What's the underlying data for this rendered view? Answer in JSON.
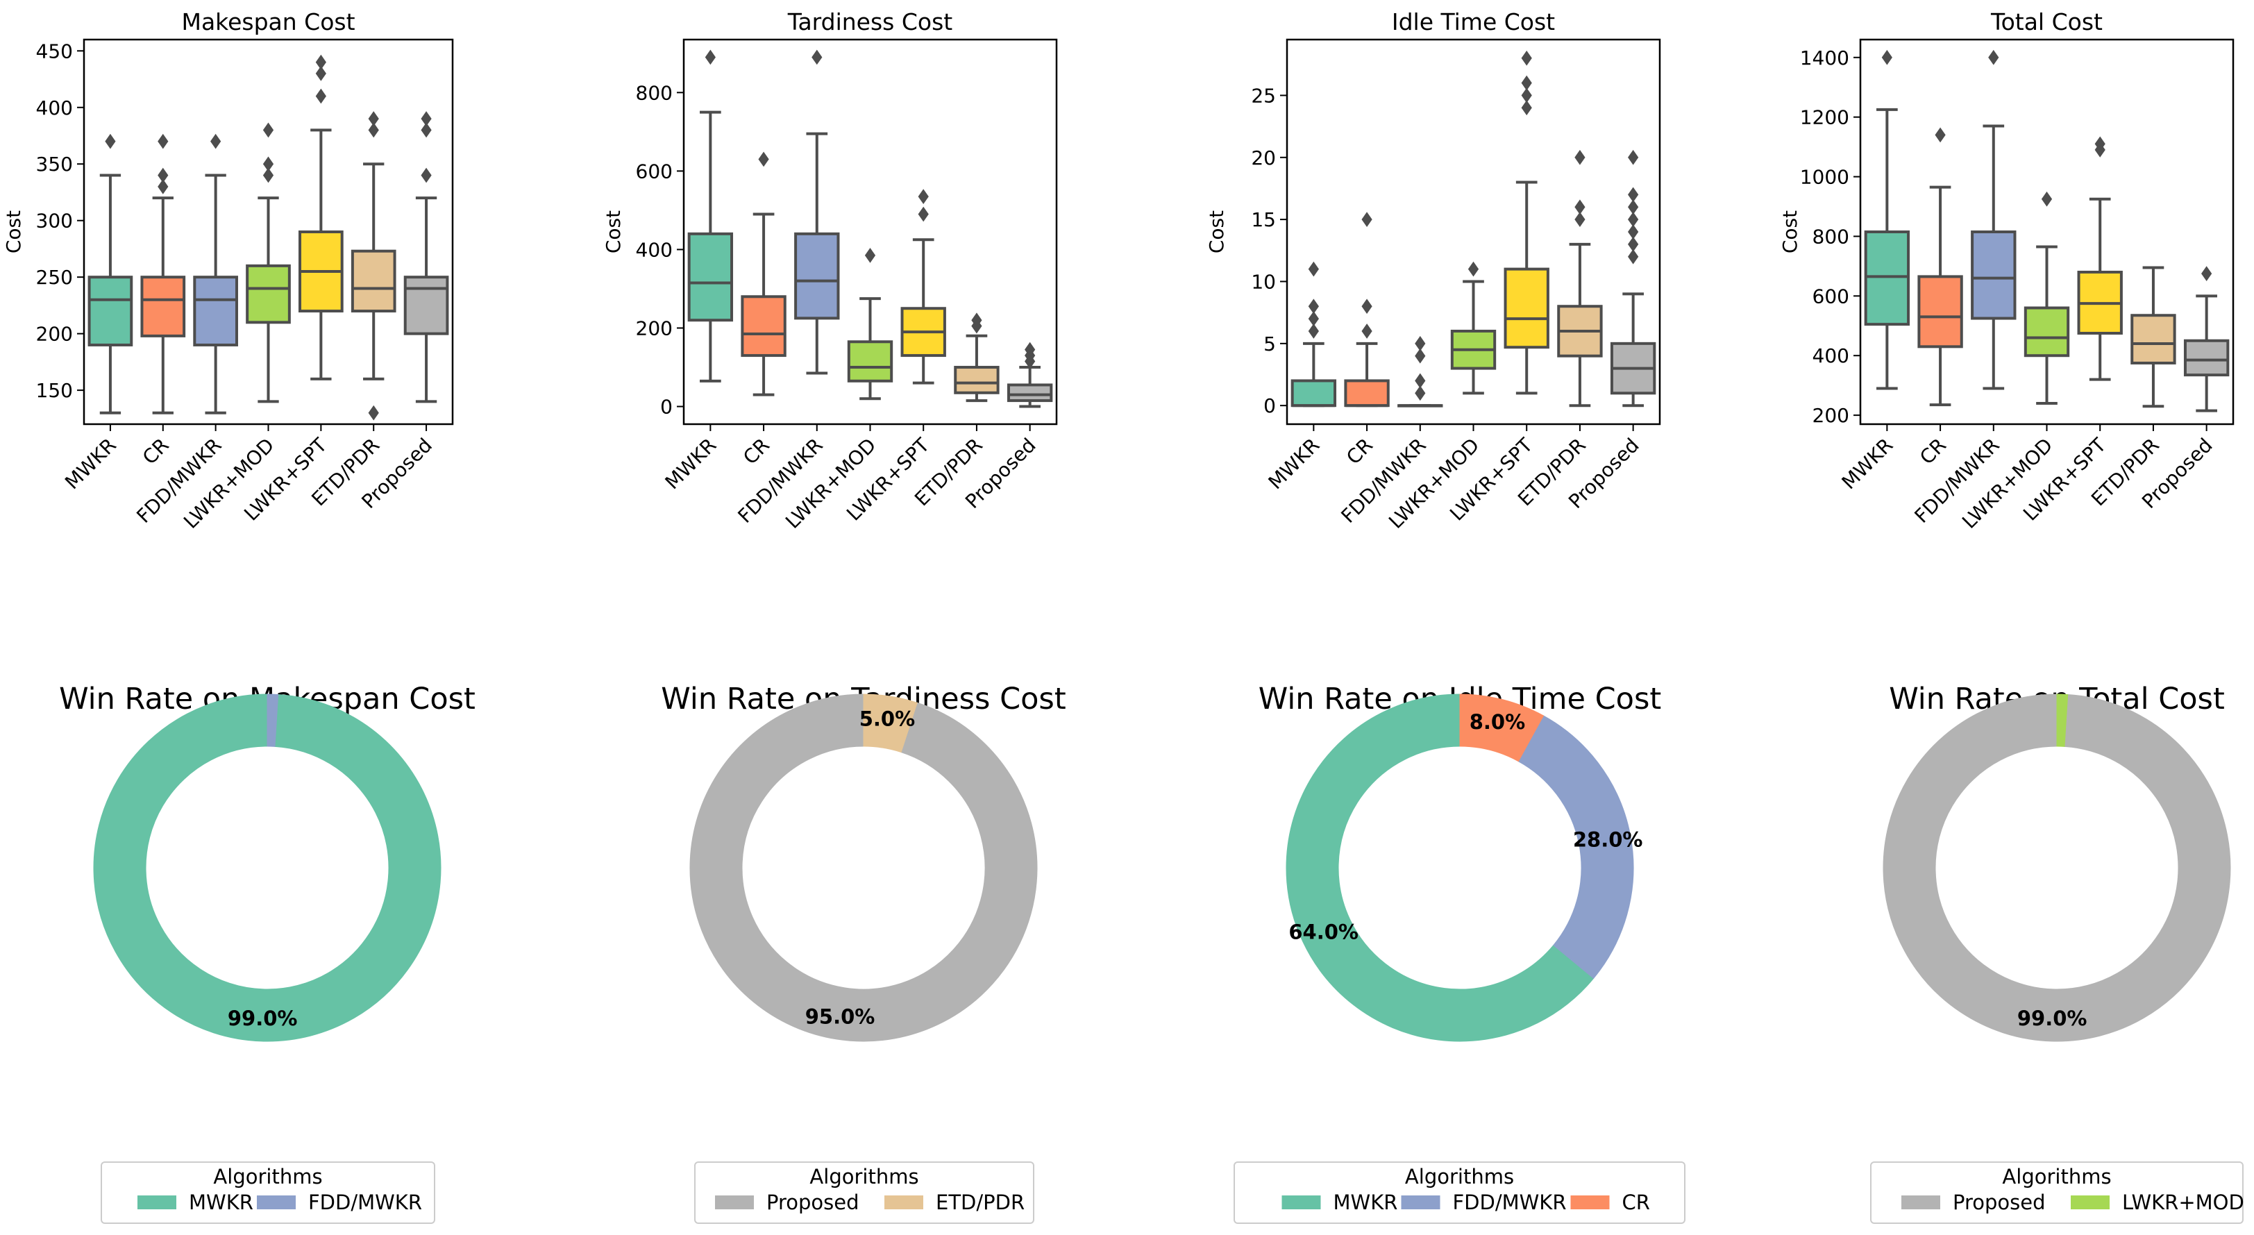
{
  "chart_data": [
    {
      "type": "box",
      "title": "Makespan Cost",
      "ylabel": "Cost",
      "ylim": [
        120,
        460
      ],
      "yticks": [
        150,
        200,
        250,
        300,
        350,
        400,
        450
      ],
      "categories": [
        "MWKR",
        "CR",
        "FDD/MWKR",
        "LWKR+MOD",
        "LWKR+SPT",
        "ETD/PDR",
        "Proposed"
      ],
      "boxes": [
        {
          "whislo": 130,
          "q1": 190,
          "med": 230,
          "q3": 250,
          "whishi": 340,
          "fliers": [
            370
          ]
        },
        {
          "whislo": 130,
          "q1": 198,
          "med": 230,
          "q3": 250,
          "whishi": 320,
          "fliers": [
            330,
            340,
            370
          ]
        },
        {
          "whislo": 130,
          "q1": 190,
          "med": 230,
          "q3": 250,
          "whishi": 340,
          "fliers": [
            370
          ]
        },
        {
          "whislo": 140,
          "q1": 210,
          "med": 240,
          "q3": 260,
          "whishi": 320,
          "fliers": [
            340,
            350,
            380
          ]
        },
        {
          "whislo": 160,
          "q1": 220,
          "med": 255,
          "q3": 290,
          "whishi": 380,
          "fliers": [
            410,
            430,
            440
          ]
        },
        {
          "whislo": 160,
          "q1": 220,
          "med": 240,
          "q3": 273,
          "whishi": 350,
          "fliers": [
            130,
            380,
            390
          ]
        },
        {
          "whislo": 140,
          "q1": 200,
          "med": 240,
          "q3": 250,
          "whishi": 320,
          "fliers": [
            340,
            380,
            390
          ]
        }
      ]
    },
    {
      "type": "box",
      "title": "Tardiness Cost",
      "ylabel": "Cost",
      "ylim": [
        -45,
        935
      ],
      "yticks": [
        0,
        200,
        400,
        600,
        800
      ],
      "categories": [
        "MWKR",
        "CR",
        "FDD/MWKR",
        "LWKR+MOD",
        "LWKR+SPT",
        "ETD/PDR",
        "Proposed"
      ],
      "boxes": [
        {
          "whislo": 65,
          "q1": 220,
          "med": 315,
          "q3": 440,
          "whishi": 750,
          "fliers": [
            890
          ]
        },
        {
          "whislo": 30,
          "q1": 130,
          "med": 185,
          "q3": 280,
          "whishi": 490,
          "fliers": [
            630
          ]
        },
        {
          "whislo": 85,
          "q1": 225,
          "med": 320,
          "q3": 440,
          "whishi": 695,
          "fliers": [
            890
          ]
        },
        {
          "whislo": 20,
          "q1": 65,
          "med": 100,
          "q3": 165,
          "whishi": 275,
          "fliers": [
            385
          ]
        },
        {
          "whislo": 60,
          "q1": 130,
          "med": 190,
          "q3": 250,
          "whishi": 425,
          "fliers": [
            490,
            535
          ]
        },
        {
          "whislo": 15,
          "q1": 35,
          "med": 60,
          "q3": 100,
          "whishi": 180,
          "fliers": [
            205,
            220
          ]
        },
        {
          "whislo": 0,
          "q1": 15,
          "med": 30,
          "q3": 55,
          "whishi": 100,
          "fliers": [
            115,
            130,
            145
          ]
        }
      ]
    },
    {
      "type": "box",
      "title": "Idle Time Cost",
      "ylabel": "Cost",
      "ylim": [
        -1.5,
        29.5
      ],
      "yticks": [
        0,
        5,
        10,
        15,
        20,
        25
      ],
      "categories": [
        "MWKR",
        "CR",
        "FDD/MWKR",
        "LWKR+MOD",
        "LWKR+SPT",
        "ETD/PDR",
        "Proposed"
      ],
      "boxes": [
        {
          "whislo": 0,
          "q1": 0,
          "med": 0,
          "q3": 2,
          "whishi": 5,
          "fliers": [
            6,
            7,
            8,
            11
          ]
        },
        {
          "whislo": 0,
          "q1": 0,
          "med": 0,
          "q3": 2,
          "whishi": 5,
          "fliers": [
            6,
            8,
            15
          ]
        },
        {
          "whislo": 0,
          "q1": 0,
          "med": 0,
          "q3": 0,
          "whishi": 0,
          "fliers": [
            1,
            2,
            4,
            5
          ]
        },
        {
          "whislo": 1,
          "q1": 3,
          "med": 4.5,
          "q3": 6,
          "whishi": 10,
          "fliers": [
            11
          ]
        },
        {
          "whislo": 1,
          "q1": 4.7,
          "med": 7,
          "q3": 11,
          "whishi": 18,
          "fliers": [
            24,
            25,
            26,
            28
          ]
        },
        {
          "whislo": 0,
          "q1": 4,
          "med": 6,
          "q3": 8,
          "whishi": 13,
          "fliers": [
            15,
            16,
            20
          ]
        },
        {
          "whislo": 0,
          "q1": 1,
          "med": 3,
          "q3": 5,
          "whishi": 9,
          "fliers": [
            12,
            13,
            14,
            15,
            16,
            17,
            20
          ]
        }
      ]
    },
    {
      "type": "box",
      "title": "Total Cost",
      "ylabel": "Cost",
      "ylim": [
        170,
        1460
      ],
      "yticks": [
        200,
        400,
        600,
        800,
        1000,
        1200,
        1400
      ],
      "categories": [
        "MWKR",
        "CR",
        "FDD/MWKR",
        "LWKR+MOD",
        "LWKR+SPT",
        "ETD/PDR",
        "Proposed"
      ],
      "boxes": [
        {
          "whislo": 290,
          "q1": 505,
          "med": 665,
          "q3": 815,
          "whishi": 1225,
          "fliers": [
            1400
          ]
        },
        {
          "whislo": 235,
          "q1": 430,
          "med": 530,
          "q3": 665,
          "whishi": 965,
          "fliers": [
            1140
          ]
        },
        {
          "whislo": 290,
          "q1": 525,
          "med": 660,
          "q3": 815,
          "whishi": 1170,
          "fliers": [
            1400
          ]
        },
        {
          "whislo": 240,
          "q1": 400,
          "med": 460,
          "q3": 560,
          "whishi": 765,
          "fliers": [
            925
          ]
        },
        {
          "whislo": 320,
          "q1": 475,
          "med": 575,
          "q3": 680,
          "whishi": 925,
          "fliers": [
            1090,
            1110
          ]
        },
        {
          "whislo": 230,
          "q1": 375,
          "med": 440,
          "q3": 535,
          "whishi": 695,
          "fliers": []
        },
        {
          "whislo": 215,
          "q1": 335,
          "med": 385,
          "q3": 450,
          "whishi": 600,
          "fliers": [
            675
          ]
        }
      ]
    },
    {
      "type": "pie",
      "title": "Win Rate on Makespan Cost",
      "slices": [
        {
          "label": "MWKR",
          "value": 99,
          "text": "99.0%"
        },
        {
          "label": "FDD/MWKR",
          "value": 1,
          "text": ""
        }
      ],
      "legend_title": "Algorithms"
    },
    {
      "type": "pie",
      "title": "Win Rate on Tardiness Cost",
      "slices": [
        {
          "label": "Proposed",
          "value": 95,
          "text": "95.0%"
        },
        {
          "label": "ETD/PDR",
          "value": 5,
          "text": "5.0%"
        }
      ],
      "legend_title": "Algorithms"
    },
    {
      "type": "pie",
      "title": "Win Rate on Idle Time Cost",
      "slices": [
        {
          "label": "MWKR",
          "value": 64,
          "text": "64.0%"
        },
        {
          "label": "FDD/MWKR",
          "value": 28,
          "text": "28.0%"
        },
        {
          "label": "CR",
          "value": 8,
          "text": "8.0%"
        }
      ],
      "legend_title": "Algorithms"
    },
    {
      "type": "pie",
      "title": "Win Rate on Total Cost",
      "slices": [
        {
          "label": "Proposed",
          "value": 99,
          "text": "99.0%"
        },
        {
          "label": "LWKR+MOD",
          "value": 1,
          "text": ""
        }
      ],
      "legend_title": "Algorithms"
    }
  ],
  "colors": {
    "MWKR": "#66c2a5",
    "CR": "#fc8d62",
    "FDD/MWKR": "#8da0cb",
    "LWKR+MOD": "#a6d854",
    "LWKR+SPT": "#ffd92f",
    "ETD/PDR": "#e5c494",
    "Proposed": "#b3b3b3",
    "box_line": "#4d4d4d"
  }
}
